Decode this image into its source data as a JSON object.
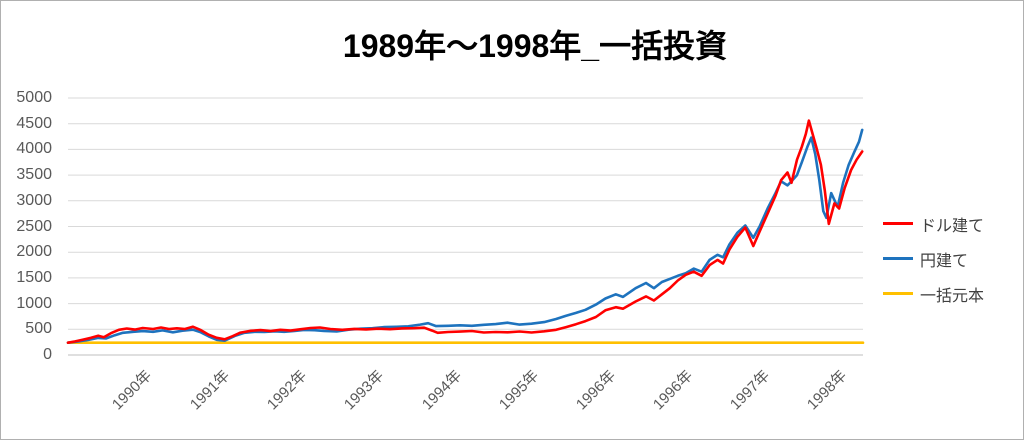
{
  "title": "1989年～1998年_一括投資",
  "colors": {
    "dollar_series": "#ff0000",
    "yen_series": "#1e73be",
    "principal_series": "#ffc000",
    "gridline": "#d9d9d9",
    "zero_axis_line": "#bfbfbf",
    "axis_text": "#595959",
    "legend_text": "#404040"
  },
  "legend": {
    "items": [
      {
        "label": "ドル建て",
        "color": "#ff0000"
      },
      {
        "label": "円建て",
        "color": "#1e73be"
      },
      {
        "label": "一括元本",
        "color": "#ffc000"
      }
    ]
  },
  "chart_data": {
    "type": "line",
    "title": "1989年～1998年_一括投資",
    "xlabel": "",
    "ylabel": "",
    "ylim": [
      0,
      5000
    ],
    "ytick_step": 500,
    "ytick_labels": [
      "5000",
      "4500",
      "4000",
      "3500",
      "3000",
      "2500",
      "2000",
      "1500",
      "1000",
      "500",
      "0"
    ],
    "grid": "horizontal",
    "legend_position": "right",
    "principal_value": 240,
    "xticks": [
      {
        "pos": 0.092,
        "label": "1990年"
      },
      {
        "pos": 0.19,
        "label": "1991年"
      },
      {
        "pos": 0.287,
        "label": "1992年"
      },
      {
        "pos": 0.384,
        "label": "1993年"
      },
      {
        "pos": 0.482,
        "label": "1994年"
      },
      {
        "pos": 0.579,
        "label": "1995年"
      },
      {
        "pos": 0.676,
        "label": "1996年"
      },
      {
        "pos": 0.772,
        "label": "1996年"
      },
      {
        "pos": 0.869,
        "label": "1997年"
      },
      {
        "pos": 0.966,
        "label": "1998年"
      }
    ],
    "series": [
      {
        "name": "一括元本",
        "color": "#ffc000",
        "points": [
          [
            0.0,
            240
          ],
          [
            1.0,
            240
          ]
        ]
      },
      {
        "name": "円建て",
        "color": "#1e73be",
        "points": [
          [
            0.0,
            240
          ],
          [
            0.013,
            262
          ],
          [
            0.025,
            292
          ],
          [
            0.038,
            332
          ],
          [
            0.048,
            322
          ],
          [
            0.059,
            385
          ],
          [
            0.069,
            432
          ],
          [
            0.082,
            452
          ],
          [
            0.094,
            465
          ],
          [
            0.107,
            452
          ],
          [
            0.119,
            478
          ],
          [
            0.132,
            442
          ],
          [
            0.144,
            472
          ],
          [
            0.157,
            492
          ],
          [
            0.167,
            442
          ],
          [
            0.177,
            362
          ],
          [
            0.187,
            295
          ],
          [
            0.197,
            278
          ],
          [
            0.21,
            372
          ],
          [
            0.222,
            432
          ],
          [
            0.235,
            452
          ],
          [
            0.247,
            447
          ],
          [
            0.26,
            462
          ],
          [
            0.272,
            452
          ],
          [
            0.285,
            468
          ],
          [
            0.297,
            488
          ],
          [
            0.31,
            482
          ],
          [
            0.322,
            468
          ],
          [
            0.338,
            458
          ],
          [
            0.353,
            492
          ],
          [
            0.368,
            512
          ],
          [
            0.383,
            522
          ],
          [
            0.398,
            542
          ],
          [
            0.413,
            548
          ],
          [
            0.428,
            558
          ],
          [
            0.443,
            592
          ],
          [
            0.453,
            618
          ],
          [
            0.463,
            562
          ],
          [
            0.478,
            568
          ],
          [
            0.493,
            578
          ],
          [
            0.508,
            568
          ],
          [
            0.523,
            588
          ],
          [
            0.538,
            602
          ],
          [
            0.553,
            628
          ],
          [
            0.568,
            592
          ],
          [
            0.583,
            608
          ],
          [
            0.599,
            640
          ],
          [
            0.614,
            700
          ],
          [
            0.626,
            760
          ],
          [
            0.639,
            820
          ],
          [
            0.651,
            880
          ],
          [
            0.664,
            980
          ],
          [
            0.676,
            1100
          ],
          [
            0.689,
            1180
          ],
          [
            0.698,
            1130
          ],
          [
            0.714,
            1300
          ],
          [
            0.727,
            1400
          ],
          [
            0.737,
            1300
          ],
          [
            0.747,
            1420
          ],
          [
            0.757,
            1480
          ],
          [
            0.767,
            1540
          ],
          [
            0.777,
            1590
          ],
          [
            0.787,
            1680
          ],
          [
            0.797,
            1620
          ],
          [
            0.807,
            1850
          ],
          [
            0.817,
            1950
          ],
          [
            0.824,
            1900
          ],
          [
            0.832,
            2150
          ],
          [
            0.842,
            2380
          ],
          [
            0.852,
            2520
          ],
          [
            0.862,
            2280
          ],
          [
            0.87,
            2500
          ],
          [
            0.88,
            2850
          ],
          [
            0.89,
            3150
          ],
          [
            0.897,
            3380
          ],
          [
            0.905,
            3300
          ],
          [
            0.91,
            3380
          ],
          [
            0.917,
            3500
          ],
          [
            0.923,
            3750
          ],
          [
            0.93,
            4050
          ],
          [
            0.935,
            4230
          ],
          [
            0.94,
            3900
          ],
          [
            0.945,
            3400
          ],
          [
            0.95,
            2800
          ],
          [
            0.954,
            2670
          ],
          [
            0.96,
            3150
          ],
          [
            0.968,
            2880
          ],
          [
            0.975,
            3350
          ],
          [
            0.982,
            3700
          ],
          [
            0.989,
            3950
          ],
          [
            0.995,
            4150
          ],
          [
            0.999,
            4380
          ]
        ]
      },
      {
        "name": "ドル建て",
        "color": "#ff0000",
        "points": [
          [
            0.0,
            240
          ],
          [
            0.009,
            265
          ],
          [
            0.019,
            300
          ],
          [
            0.029,
            335
          ],
          [
            0.038,
            375
          ],
          [
            0.045,
            345
          ],
          [
            0.054,
            425
          ],
          [
            0.064,
            490
          ],
          [
            0.074,
            515
          ],
          [
            0.084,
            495
          ],
          [
            0.094,
            525
          ],
          [
            0.107,
            505
          ],
          [
            0.117,
            535
          ],
          [
            0.127,
            505
          ],
          [
            0.137,
            520
          ],
          [
            0.147,
            505
          ],
          [
            0.157,
            550
          ],
          [
            0.167,
            485
          ],
          [
            0.177,
            395
          ],
          [
            0.187,
            335
          ],
          [
            0.197,
            305
          ],
          [
            0.207,
            365
          ],
          [
            0.217,
            435
          ],
          [
            0.23,
            470
          ],
          [
            0.242,
            485
          ],
          [
            0.255,
            465
          ],
          [
            0.267,
            490
          ],
          [
            0.28,
            475
          ],
          [
            0.292,
            500
          ],
          [
            0.305,
            525
          ],
          [
            0.317,
            535
          ],
          [
            0.33,
            505
          ],
          [
            0.345,
            490
          ],
          [
            0.36,
            508
          ],
          [
            0.375,
            498
          ],
          [
            0.39,
            512
          ],
          [
            0.405,
            502
          ],
          [
            0.42,
            518
          ],
          [
            0.435,
            522
          ],
          [
            0.448,
            532
          ],
          [
            0.458,
            475
          ],
          [
            0.465,
            432
          ],
          [
            0.478,
            448
          ],
          [
            0.493,
            456
          ],
          [
            0.508,
            466
          ],
          [
            0.523,
            438
          ],
          [
            0.538,
            448
          ],
          [
            0.553,
            442
          ],
          [
            0.568,
            458
          ],
          [
            0.583,
            438
          ],
          [
            0.599,
            462
          ],
          [
            0.614,
            490
          ],
          [
            0.626,
            540
          ],
          [
            0.639,
            600
          ],
          [
            0.651,
            660
          ],
          [
            0.664,
            740
          ],
          [
            0.676,
            870
          ],
          [
            0.689,
            930
          ],
          [
            0.698,
            900
          ],
          [
            0.714,
            1040
          ],
          [
            0.727,
            1140
          ],
          [
            0.737,
            1060
          ],
          [
            0.747,
            1180
          ],
          [
            0.757,
            1300
          ],
          [
            0.767,
            1450
          ],
          [
            0.777,
            1560
          ],
          [
            0.787,
            1620
          ],
          [
            0.797,
            1540
          ],
          [
            0.807,
            1750
          ],
          [
            0.817,
            1850
          ],
          [
            0.824,
            1780
          ],
          [
            0.832,
            2050
          ],
          [
            0.842,
            2300
          ],
          [
            0.852,
            2480
          ],
          [
            0.862,
            2120
          ],
          [
            0.87,
            2400
          ],
          [
            0.88,
            2750
          ],
          [
            0.89,
            3100
          ],
          [
            0.897,
            3400
          ],
          [
            0.905,
            3550
          ],
          [
            0.91,
            3350
          ],
          [
            0.917,
            3800
          ],
          [
            0.923,
            4050
          ],
          [
            0.928,
            4300
          ],
          [
            0.932,
            4560
          ],
          [
            0.937,
            4280
          ],
          [
            0.942,
            4000
          ],
          [
            0.947,
            3700
          ],
          [
            0.952,
            3200
          ],
          [
            0.957,
            2550
          ],
          [
            0.964,
            2950
          ],
          [
            0.97,
            2850
          ],
          [
            0.977,
            3250
          ],
          [
            0.985,
            3600
          ],
          [
            0.992,
            3800
          ],
          [
            0.999,
            3960
          ]
        ]
      }
    ]
  }
}
